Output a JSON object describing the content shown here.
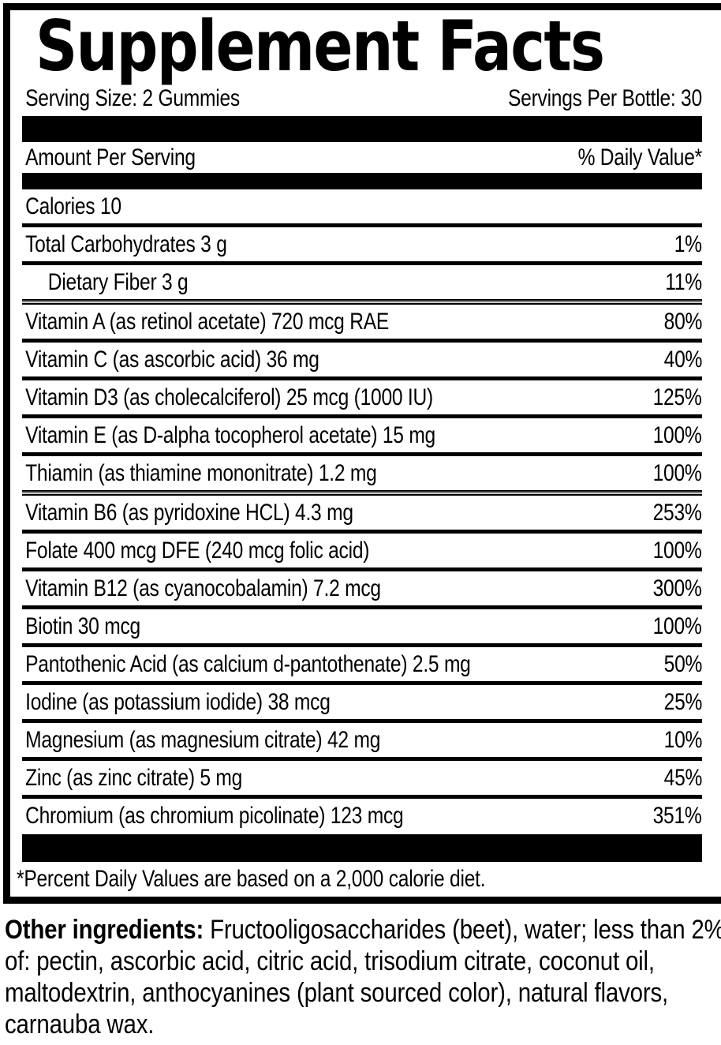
{
  "panel": {
    "title": "Supplement Facts",
    "serving_size": "Serving Size: 2 Gummies",
    "servings_per_bottle": "Servings Per Bottle: 30",
    "amount_per_serving": "Amount Per Serving",
    "daily_value_header": "% Daily Value*",
    "rows": [
      {
        "label": "Calories 10",
        "dv": "",
        "indent": false,
        "sep": "single"
      },
      {
        "label": "Total Carbohydrates 3 g",
        "dv": "1%",
        "indent": false,
        "sep": "single"
      },
      {
        "label": "Dietary Fiber 3 g",
        "dv": "11%",
        "indent": true,
        "sep": "double"
      },
      {
        "label": "Vitamin A (as retinol acetate) 720 mcg RAE",
        "dv": "80%",
        "indent": false,
        "sep": "single"
      },
      {
        "label": "Vitamin C (as ascorbic acid) 36 mg",
        "dv": "40%",
        "indent": false,
        "sep": "single"
      },
      {
        "label": "Vitamin D3 (as cholecalciferol) 25 mcg (1000 IU)",
        "dv": "125%",
        "indent": false,
        "sep": "single"
      },
      {
        "label": "Vitamin E (as D-alpha tocopherol acetate) 15 mg",
        "dv": "100%",
        "indent": false,
        "sep": "single"
      },
      {
        "label": "Thiamin (as thiamine mononitrate) 1.2 mg",
        "dv": "100%",
        "indent": false,
        "sep": "double"
      },
      {
        "label": "Vitamin B6 (as pyridoxine HCL) 4.3 mg",
        "dv": "253%",
        "indent": false,
        "sep": "single"
      },
      {
        "label": "Folate 400 mcg DFE (240 mcg folic acid)",
        "dv": "100%",
        "indent": false,
        "sep": "single"
      },
      {
        "label": "Vitamin B12 (as cyanocobalamin) 7.2 mcg",
        "dv": "300%",
        "indent": false,
        "sep": "single"
      },
      {
        "label": "Biotin 30 mcg",
        "dv": "100%",
        "indent": false,
        "sep": "single"
      },
      {
        "label": "Pantothenic Acid (as calcium d-pantothenate) 2.5 mg",
        "dv": "50%",
        "indent": false,
        "sep": "single"
      },
      {
        "label": "Iodine (as potassium iodide) 38 mcg",
        "dv": "25%",
        "indent": false,
        "sep": "single"
      },
      {
        "label": "Magnesium (as magnesium citrate) 42 mg",
        "dv": "10%",
        "indent": false,
        "sep": "single"
      },
      {
        "label": "Zinc (as zinc citrate) 5 mg",
        "dv": "45%",
        "indent": false,
        "sep": "single"
      },
      {
        "label": "Chromium (as chromium picolinate) 123 mcg",
        "dv": "351%",
        "indent": false,
        "sep": "none"
      }
    ],
    "footnote": "*Percent Daily Values are based on a 2,000 calorie diet."
  },
  "other_ingredients": {
    "label": "Other ingredients:",
    "text": " Fructooligosaccharides (beet), water; less than 2% of: pectin, ascorbic acid, citric acid, trisodium citrate, coconut oil, maltodextrin, anthocyanines (plant sourced color), natural flavors, carnauba wax."
  },
  "colors": {
    "ink": "#000000",
    "paper": "#ffffff"
  }
}
